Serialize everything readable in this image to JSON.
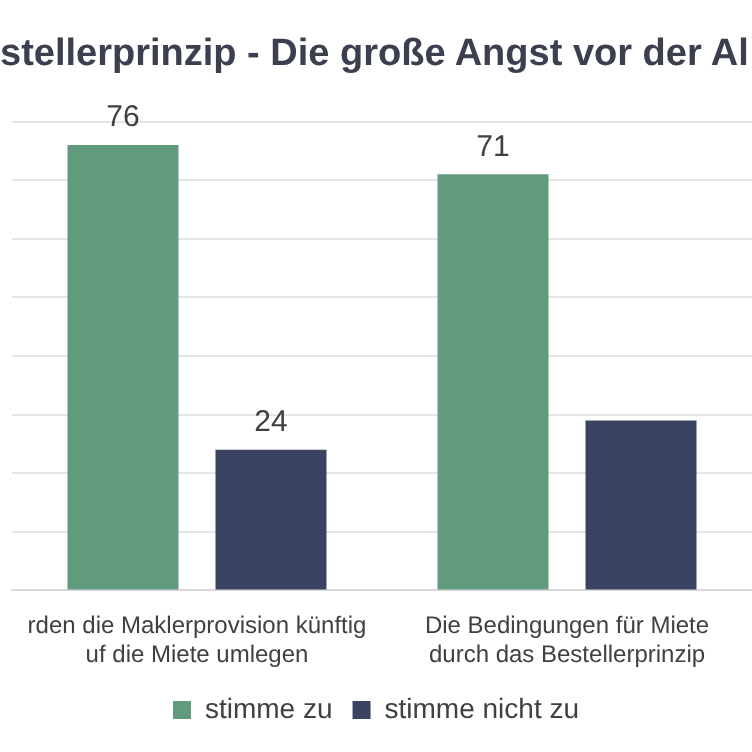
{
  "chart_data": {
    "type": "bar",
    "title": "stellerprinzip - Die große Angst vor der Al",
    "categories": [
      "rden die Maklerprovision künftig\nuf die Miete umlegen",
      "Die Bedingungen für Miete\ndurch das Bestellerprinzip"
    ],
    "series": [
      {
        "name": "stimme zu",
        "color": "#629a7d",
        "values": [
          76,
          71
        ],
        "value_labels": [
          "76",
          "71"
        ]
      },
      {
        "name": "stimme nicht zu",
        "color": "#3a4462",
        "values": [
          24,
          29
        ],
        "value_labels": [
          "24",
          null
        ]
      }
    ],
    "ylim": [
      0,
      80
    ],
    "yticks": [
      {
        "value": 0,
        "label": null
      },
      {
        "value": 10,
        "label": null
      },
      {
        "value": 20,
        "label": null
      },
      {
        "value": 30,
        "label": null
      },
      {
        "value": 40,
        "label": null
      },
      {
        "value": 50,
        "label": null
      },
      {
        "value": 60,
        "label": null
      },
      {
        "value": 70,
        "label": null
      },
      {
        "value": 80,
        "label": null
      }
    ],
    "grid": "y",
    "legend": "bottom"
  }
}
